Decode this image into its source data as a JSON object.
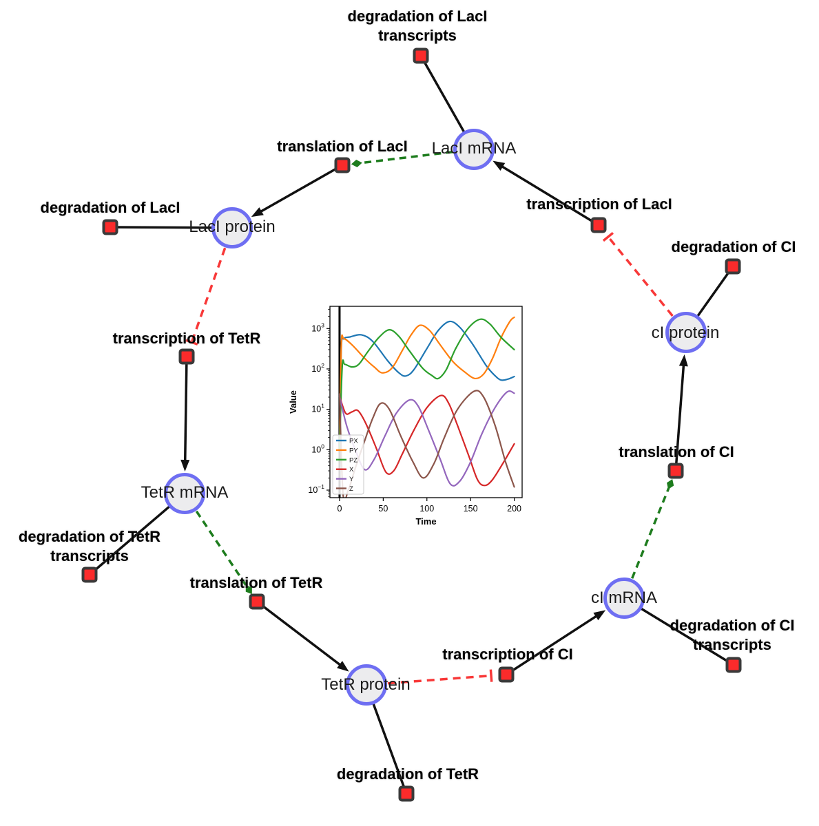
{
  "diagram": {
    "species": [
      {
        "id": "laci-mrna",
        "label": "LacI mRNA"
      },
      {
        "id": "laci-protein",
        "label": "LacI protein"
      },
      {
        "id": "tetr-mrna",
        "label": "TetR mRNA"
      },
      {
        "id": "tetr-protein",
        "label": "TetR protein"
      },
      {
        "id": "ci-mrna",
        "label": "cI mRNA"
      },
      {
        "id": "ci-protein",
        "label": "cI protein"
      }
    ],
    "reactions": [
      {
        "id": "deg-laci-tx",
        "label": "degradation of LacI transcripts",
        "lines": [
          "degradation of LacI",
          "transcripts"
        ]
      },
      {
        "id": "translation-laci",
        "label": "translation of LacI",
        "lines": [
          "translation of LacI"
        ]
      },
      {
        "id": "deg-laci",
        "label": "degradation of LacI",
        "lines": [
          "degradation of LacI"
        ]
      },
      {
        "id": "transcription-laci",
        "label": "transcription of LacI",
        "lines": [
          "transcription of LacI"
        ]
      },
      {
        "id": "deg-ci",
        "label": "degradation of CI",
        "lines": [
          "degradation of CI"
        ]
      },
      {
        "id": "transcription-tetr",
        "label": "transcription of TetR",
        "lines": [
          "transcription of TetR"
        ]
      },
      {
        "id": "translation-ci",
        "label": "translation of CI",
        "lines": [
          "translation of CI"
        ]
      },
      {
        "id": "deg-tetr-tx",
        "label": "degradation of TetR transcripts",
        "lines": [
          "degradation of TetR",
          "transcripts"
        ]
      },
      {
        "id": "translation-tetr",
        "label": "translation of TetR",
        "lines": [
          "translation of TetR"
        ]
      },
      {
        "id": "deg-ci-tx",
        "label": "degradation of CI transcripts",
        "lines": [
          "degradation of CI",
          "transcripts"
        ]
      },
      {
        "id": "transcription-ci",
        "label": "transcription of CI",
        "lines": [
          "transcription of CI"
        ]
      },
      {
        "id": "deg-tetr",
        "label": "degradation of TetR",
        "lines": [
          "degradation of TetR"
        ]
      }
    ],
    "edges": [
      {
        "from": "laci-mrna",
        "to": "deg-laci-tx",
        "type": "line"
      },
      {
        "from": "laci-mrna",
        "to": "translation-laci",
        "type": "catalysis"
      },
      {
        "from": "translation-laci",
        "to": "laci-protein",
        "type": "arrow"
      },
      {
        "from": "transcription-laci",
        "to": "laci-mrna",
        "type": "arrow"
      },
      {
        "from": "laci-protein",
        "to": "deg-laci",
        "type": "line"
      },
      {
        "from": "laci-protein",
        "to": "transcription-tetr",
        "type": "inhibition"
      },
      {
        "from": "transcription-tetr",
        "to": "tetr-mrna",
        "type": "arrow"
      },
      {
        "from": "tetr-mrna",
        "to": "deg-tetr-tx",
        "type": "line"
      },
      {
        "from": "tetr-mrna",
        "to": "translation-tetr",
        "type": "catalysis"
      },
      {
        "from": "translation-tetr",
        "to": "tetr-protein",
        "type": "arrow"
      },
      {
        "from": "tetr-protein",
        "to": "deg-tetr",
        "type": "line"
      },
      {
        "from": "tetr-protein",
        "to": "transcription-ci",
        "type": "inhibition"
      },
      {
        "from": "transcription-ci",
        "to": "ci-mrna",
        "type": "arrow"
      },
      {
        "from": "ci-mrna",
        "to": "deg-ci-tx",
        "type": "line"
      },
      {
        "from": "ci-mrna",
        "to": "translation-ci",
        "type": "catalysis"
      },
      {
        "from": "translation-ci",
        "to": "ci-protein",
        "type": "arrow"
      },
      {
        "from": "ci-protein",
        "to": "deg-ci",
        "type": "line"
      },
      {
        "from": "ci-protein",
        "to": "transcription-laci",
        "type": "inhibition"
      }
    ],
    "colors": {
      "edge": "#111111",
      "activation": "#1d7c1d",
      "inhibition": "#f83838",
      "species_fill": "#ececee",
      "species_border": "#6e6ef2",
      "reaction_fill": "#fb2b2b",
      "reaction_border": "#3a3a3a"
    }
  },
  "chart_data": {
    "type": "line",
    "title": "",
    "xlabel": "Time",
    "ylabel": "Value",
    "x_scale": "linear",
    "y_scale": "log",
    "xlim": [
      -11,
      209
    ],
    "ylim": [
      0.065,
      3550
    ],
    "x_ticks": [
      0,
      50,
      100,
      150,
      200
    ],
    "y_tick_exponents": [
      -1,
      0,
      1,
      2,
      3
    ],
    "grid": false,
    "legend_position": "lower left",
    "marker_line_x": 0,
    "series": [
      {
        "name": "PX",
        "color": "#1f77b4",
        "points": [
          [
            0,
            1
          ],
          [
            2,
            320
          ],
          [
            5,
            560
          ],
          [
            12,
            620
          ],
          [
            25,
            700
          ],
          [
            38,
            480
          ],
          [
            55,
            160
          ],
          [
            68,
            80
          ],
          [
            76,
            67
          ],
          [
            85,
            95
          ],
          [
            100,
            320
          ],
          [
            113,
            900
          ],
          [
            126,
            1500
          ],
          [
            138,
            1050
          ],
          [
            152,
            420
          ],
          [
            168,
            120
          ],
          [
            178,
            68
          ],
          [
            185,
            53
          ],
          [
            193,
            56
          ],
          [
            200,
            65
          ]
        ]
      },
      {
        "name": "PY",
        "color": "#ff7f0e",
        "points": [
          [
            0,
            1
          ],
          [
            2,
            380
          ],
          [
            5,
            560
          ],
          [
            15,
            380
          ],
          [
            28,
            190
          ],
          [
            40,
            110
          ],
          [
            49,
            80
          ],
          [
            60,
            105
          ],
          [
            72,
            290
          ],
          [
            82,
            700
          ],
          [
            92,
            1200
          ],
          [
            103,
            900
          ],
          [
            115,
            400
          ],
          [
            130,
            150
          ],
          [
            143,
            85
          ],
          [
            155,
            58
          ],
          [
            165,
            75
          ],
          [
            175,
            180
          ],
          [
            185,
            600
          ],
          [
            195,
            1500
          ],
          [
            200,
            1900
          ]
        ]
      },
      {
        "name": "PZ",
        "color": "#2ca02c",
        "points": [
          [
            0,
            1
          ],
          [
            3,
            110
          ],
          [
            6,
            130
          ],
          [
            14,
            112
          ],
          [
            22,
            130
          ],
          [
            32,
            260
          ],
          [
            45,
            600
          ],
          [
            57,
            930
          ],
          [
            68,
            640
          ],
          [
            80,
            280
          ],
          [
            95,
            105
          ],
          [
            106,
            68
          ],
          [
            113,
            58
          ],
          [
            122,
            95
          ],
          [
            133,
            320
          ],
          [
            147,
            1000
          ],
          [
            161,
            1700
          ],
          [
            172,
            1300
          ],
          [
            185,
            600
          ],
          [
            200,
            300
          ]
        ]
      },
      {
        "name": "X",
        "color": "#d62728",
        "points": [
          [
            0,
            21
          ],
          [
            7,
            8
          ],
          [
            14,
            8.6
          ],
          [
            21,
            9.3
          ],
          [
            30,
            4.5
          ],
          [
            42,
            1.1
          ],
          [
            53,
            0.28
          ],
          [
            62,
            0.3
          ],
          [
            72,
            0.8
          ],
          [
            85,
            3
          ],
          [
            100,
            11
          ],
          [
            116,
            22
          ],
          [
            125,
            14
          ],
          [
            135,
            4
          ],
          [
            148,
            0.7
          ],
          [
            158,
            0.18
          ],
          [
            166,
            0.13
          ],
          [
            175,
            0.18
          ],
          [
            188,
            0.5
          ],
          [
            200,
            1.4
          ]
        ]
      },
      {
        "name": "Y",
        "color": "#9467bd",
        "points": [
          [
            0,
            21
          ],
          [
            8,
            4
          ],
          [
            18,
            1
          ],
          [
            29,
            0.32
          ],
          [
            40,
            0.6
          ],
          [
            52,
            2.2
          ],
          [
            65,
            8
          ],
          [
            80,
            17
          ],
          [
            90,
            12
          ],
          [
            102,
            3
          ],
          [
            115,
            0.6
          ],
          [
            127,
            0.14
          ],
          [
            138,
            0.17
          ],
          [
            150,
            0.5
          ],
          [
            163,
            2.5
          ],
          [
            178,
            11
          ],
          [
            192,
            27
          ],
          [
            200,
            25
          ]
        ]
      },
      {
        "name": "Z",
        "color": "#8c564b",
        "points": [
          [
            0,
            24
          ],
          [
            4,
            0.08
          ],
          [
            10,
            0.1
          ],
          [
            18,
            0.35
          ],
          [
            28,
            1.5
          ],
          [
            38,
            6
          ],
          [
            47,
            14
          ],
          [
            57,
            10
          ],
          [
            70,
            2.2
          ],
          [
            84,
            0.5
          ],
          [
            96,
            0.2
          ],
          [
            108,
            0.45
          ],
          [
            120,
            2
          ],
          [
            135,
            10
          ],
          [
            154,
            28
          ],
          [
            165,
            20
          ],
          [
            178,
            4
          ],
          [
            190,
            0.5
          ],
          [
            200,
            0.12
          ]
        ]
      }
    ]
  }
}
